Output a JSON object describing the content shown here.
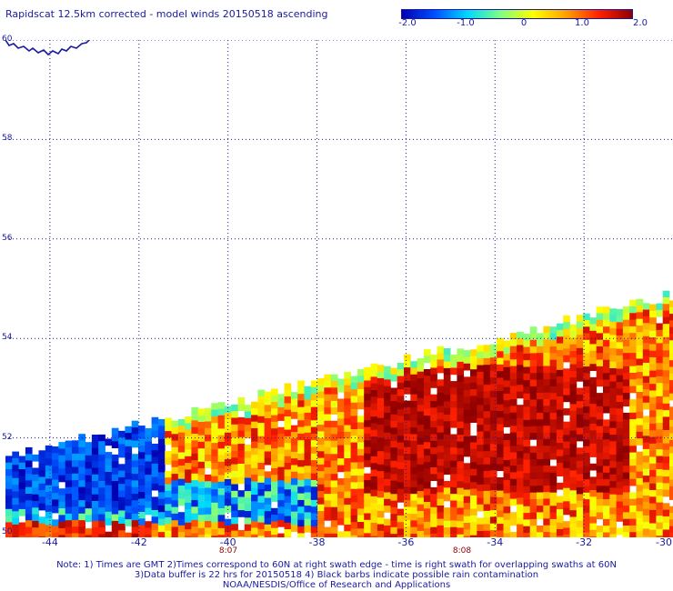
{
  "title": "Rapidscat 12.5km corrected - model winds 20150518 ascending",
  "colorbar": {
    "ticks": [
      "-2.0",
      "-1.0",
      "0",
      "1.0",
      "2.0"
    ],
    "colors": [
      "#0000b0",
      "#0050ff",
      "#00d8ff",
      "#80ff80",
      "#ffff00",
      "#ffa000",
      "#ff2000",
      "#900000"
    ]
  },
  "map": {
    "lon_labels": [
      "-44",
      "-42",
      "-40",
      "-38",
      "-36",
      "-34",
      "-32",
      "-30"
    ],
    "lat_labels": [
      "60",
      "58",
      "56",
      "54",
      "52",
      "50"
    ],
    "lon_range": [
      -45,
      -30
    ],
    "lat_range": [
      50,
      60
    ],
    "grid": "dotted",
    "data_range": [
      -2.0,
      2.0
    ]
  },
  "times": [
    "8:07",
    "8:08"
  ],
  "notes": [
    "Note: 1) Times are GMT 2)Times correspond to 60N at right swath edge - time is right swath for overlapping swaths at 60N",
    "3)Data buffer is 22 hrs for 20150518 4) Black barbs indicate possible rain contamination",
    "NOAA/NESDIS/Office of Research and Applications"
  ],
  "colors": {
    "text": "#1a1aa0",
    "time_text": "#8b0000",
    "coast": "#1a1aa0"
  }
}
